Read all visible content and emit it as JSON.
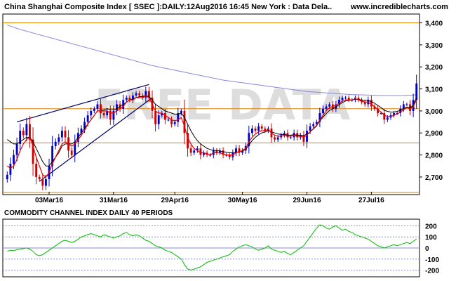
{
  "header": {
    "title": "China Shanghai Composite Index [ SSEC ]:DAILY:12Aug2016 16:45 New York : Data Dela..",
    "site": "www.incrediblecharts.com",
    "watermark": "FREE DATA"
  },
  "colors": {
    "up_candle": "#0000cc",
    "down_candle": "#cc0000",
    "ma_short": "#ee0000",
    "ma_mid": "#000000",
    "ma_long": "#8888dd",
    "hline": "#e08000",
    "trendline": "#000066",
    "cci_line": "#00bb00",
    "cci_grid": "#8888cc"
  },
  "chart_data": [
    {
      "type": "candlestick",
      "title": "China Shanghai Composite Index [ SSEC ]:DAILY:12Aug2016 16:45 New York : Data Dela..",
      "x_tick_labels": [
        "03Mar16",
        "31Mar16",
        "29Apr16",
        "30May16",
        "29Jun16",
        "27Jul16"
      ],
      "x_tick_index": [
        13,
        33,
        52,
        73,
        93,
        113
      ],
      "y_tick_labels": [
        "2,700",
        "2,800",
        "2,900",
        "3,000",
        "3,100",
        "3,200",
        "3,300",
        "3,400"
      ],
      "ylim": [
        2620,
        3440
      ],
      "grid": false,
      "horizontal_levels": [
        2630,
        2855,
        3010,
        3400
      ],
      "closes": [
        2710,
        2760,
        2800,
        2850,
        2910,
        2890,
        2940,
        2870,
        2760,
        2700,
        2690,
        2660,
        2690,
        2750,
        2840,
        2860,
        2880,
        2910,
        2880,
        2820,
        2800,
        2860,
        2900,
        2920,
        2950,
        2980,
        3000,
        3010,
        3030,
        2990,
        2980,
        3000,
        2960,
        3000,
        3030,
        3010,
        3050,
        3060,
        3050,
        3070,
        3080,
        3070,
        3060,
        3090,
        3060,
        3000,
        2940,
        2980,
        2990,
        2960,
        2960,
        2940,
        2950,
        2990,
        3000,
        2900,
        2830,
        2810,
        2820,
        2830,
        2800,
        2810,
        2800,
        2800,
        2820,
        2810,
        2820,
        2800,
        2800,
        2790,
        2810,
        2830,
        2810,
        2820,
        2840,
        2900,
        2920,
        2910,
        2930,
        2920,
        2910,
        2920,
        2880,
        2870,
        2880,
        2890,
        2900,
        2880,
        2880,
        2900,
        2880,
        2890,
        2860,
        2910,
        2930,
        2940,
        2950,
        2990,
        3010,
        3020,
        3030,
        3010,
        3030,
        3050,
        3060,
        3060,
        3050,
        3050,
        3060,
        3050,
        3040,
        3030,
        3050,
        3020,
        3010,
        2990,
        2990,
        2960,
        2970,
        2980,
        2990,
        2990,
        3010,
        3030,
        3030,
        3000,
        3050,
        3125
      ],
      "series": [
        {
          "kind": "ma_short",
          "values": [
            2750,
            2740,
            2750,
            2780,
            2820,
            2850,
            2870,
            2880,
            2840,
            2790,
            2750,
            2710,
            2700,
            2720,
            2760,
            2790,
            2820,
            2850,
            2860,
            2850,
            2840,
            2850,
            2870,
            2890,
            2910,
            2940,
            2960,
            2980,
            3000,
            3000,
            3000,
            3000,
            2990,
            2990,
            3000,
            3010,
            3020,
            3040,
            3050,
            3050,
            3060,
            3060,
            3060,
            3070,
            3060,
            3030,
            3000,
            2990,
            2990,
            2980,
            2970,
            2960,
            2955,
            2960,
            2970,
            2930,
            2880,
            2850,
            2830,
            2820,
            2810,
            2810,
            2805,
            2800,
            2810,
            2810,
            2810,
            2805,
            2800,
            2800,
            2800,
            2810,
            2815,
            2820,
            2830,
            2860,
            2880,
            2895,
            2905,
            2910,
            2910,
            2915,
            2900,
            2890,
            2885,
            2885,
            2890,
            2885,
            2885,
            2890,
            2885,
            2885,
            2880,
            2890,
            2905,
            2920,
            2935,
            2960,
            2980,
            3000,
            3015,
            3020,
            3025,
            3035,
            3045,
            3050,
            3050,
            3050,
            3055,
            3050,
            3045,
            3040,
            3040,
            3030,
            3020,
            3005,
            2995,
            2980,
            2975,
            2975,
            2980,
            2985,
            2995,
            3005,
            3015,
            3010,
            3020,
            3050
          ]
        },
        {
          "kind": "ma_mid",
          "values": [
            2870,
            2860,
            2850,
            2850,
            2860,
            2870,
            2880,
            2880,
            2860,
            2830,
            2800,
            2770,
            2750,
            2750,
            2770,
            2790,
            2810,
            2840,
            2850,
            2850,
            2850,
            2860,
            2880,
            2900,
            2920,
            2940,
            2960,
            2980,
            3000,
            3000,
            3005,
            3010,
            3005,
            3005,
            3010,
            3020,
            3030,
            3040,
            3050,
            3055,
            3060,
            3065,
            3065,
            3070,
            3065,
            3050,
            3030,
            3020,
            3010,
            3000,
            2995,
            2990,
            2985,
            2985,
            2990,
            2970,
            2940,
            2910,
            2885,
            2865,
            2850,
            2840,
            2830,
            2825,
            2820,
            2820,
            2818,
            2815,
            2812,
            2810,
            2810,
            2812,
            2815,
            2818,
            2825,
            2845,
            2865,
            2880,
            2892,
            2900,
            2905,
            2910,
            2905,
            2900,
            2895,
            2893,
            2893,
            2890,
            2890,
            2892,
            2890,
            2890,
            2888,
            2895,
            2905,
            2918,
            2932,
            2955,
            2972,
            2988,
            3002,
            3010,
            3018,
            3028,
            3038,
            3045,
            3048,
            3050,
            3053,
            3052,
            3050,
            3048,
            3048,
            3042,
            3035,
            3025,
            3015,
            3003,
            2998,
            2995,
            2995,
            2998,
            3003,
            3010,
            3018,
            3015,
            3025,
            3060
          ]
        },
        {
          "kind": "ma_long",
          "values": [
            3390,
            3385,
            3380,
            3375,
            3370,
            3366,
            3362,
            3358,
            3354,
            3350,
            3346,
            3342,
            3338,
            3334,
            3330,
            3326,
            3322,
            3318,
            3314,
            3310,
            3306,
            3302,
            3298,
            3294,
            3290,
            3286,
            3282,
            3278,
            3274,
            3270,
            3266,
            3262,
            3258,
            3254,
            3250,
            3246,
            3242,
            3238,
            3234,
            3230,
            3226,
            3222,
            3218,
            3214,
            3210,
            3206,
            3203,
            3200,
            3197,
            3194,
            3191,
            3188,
            3185,
            3182,
            3179,
            3176,
            3173,
            3170,
            3167,
            3164,
            3161,
            3158,
            3155,
            3152,
            3149,
            3146,
            3143,
            3140,
            3138,
            3136,
            3134,
            3132,
            3130,
            3128,
            3126,
            3124,
            3122,
            3120,
            3118,
            3116,
            3114,
            3112,
            3110,
            3108,
            3106,
            3104,
            3102,
            3100,
            3098,
            3096,
            3094,
            3092,
            3090,
            3088,
            3087,
            3086,
            3085,
            3084,
            3083,
            3082,
            3081,
            3080,
            3079,
            3078,
            3077,
            3076,
            3075,
            3074,
            3074,
            3073,
            3073,
            3072,
            3072,
            3071,
            3071,
            3070,
            3070,
            3070,
            3070,
            3070,
            3070,
            3070,
            3070,
            3070,
            3071,
            3071,
            3072,
            3073
          ]
        }
      ],
      "trendlines": [
        {
          "x1": 3,
          "y1": 2950,
          "x2": 44,
          "y2": 3120
        },
        {
          "x1": 10,
          "y1": 2680,
          "x2": 45,
          "y2": 3060
        }
      ]
    },
    {
      "type": "line",
      "title": "COMMODITY CHANNEL INDEX DAILY 40 PERIODS",
      "y_tick_labels": [
        "200",
        "100",
        "0",
        "-100",
        "-200"
      ],
      "ylim": [
        -260,
        260
      ],
      "levels": [
        200,
        100,
        0,
        -100,
        -200
      ],
      "values": [
        -30,
        -20,
        -25,
        -15,
        -10,
        -5,
        0,
        -10,
        -30,
        -60,
        -70,
        -60,
        -40,
        -20,
        0,
        20,
        40,
        60,
        70,
        60,
        50,
        60,
        80,
        100,
        110,
        120,
        130,
        120,
        110,
        100,
        120,
        110,
        100,
        90,
        100,
        110,
        130,
        140,
        120,
        110,
        120,
        110,
        90,
        70,
        60,
        40,
        20,
        10,
        0,
        -20,
        -30,
        -40,
        -60,
        -80,
        -100,
        -150,
        -190,
        -200,
        -190,
        -180,
        -170,
        -150,
        -130,
        -120,
        -110,
        -100,
        -90,
        -80,
        -70,
        -60,
        -30,
        -10,
        10,
        20,
        30,
        20,
        10,
        -10,
        -20,
        -10,
        0,
        20,
        -10,
        -20,
        -30,
        -40,
        -30,
        -50,
        -60,
        -40,
        -20,
        0,
        20,
        60,
        100,
        140,
        180,
        210,
        200,
        180,
        170,
        190,
        200,
        180,
        160,
        170,
        150,
        140,
        120,
        110,
        100,
        90,
        80,
        60,
        40,
        20,
        10,
        0,
        10,
        20,
        30,
        20,
        30,
        40,
        50,
        40,
        60,
        80
      ]
    }
  ]
}
